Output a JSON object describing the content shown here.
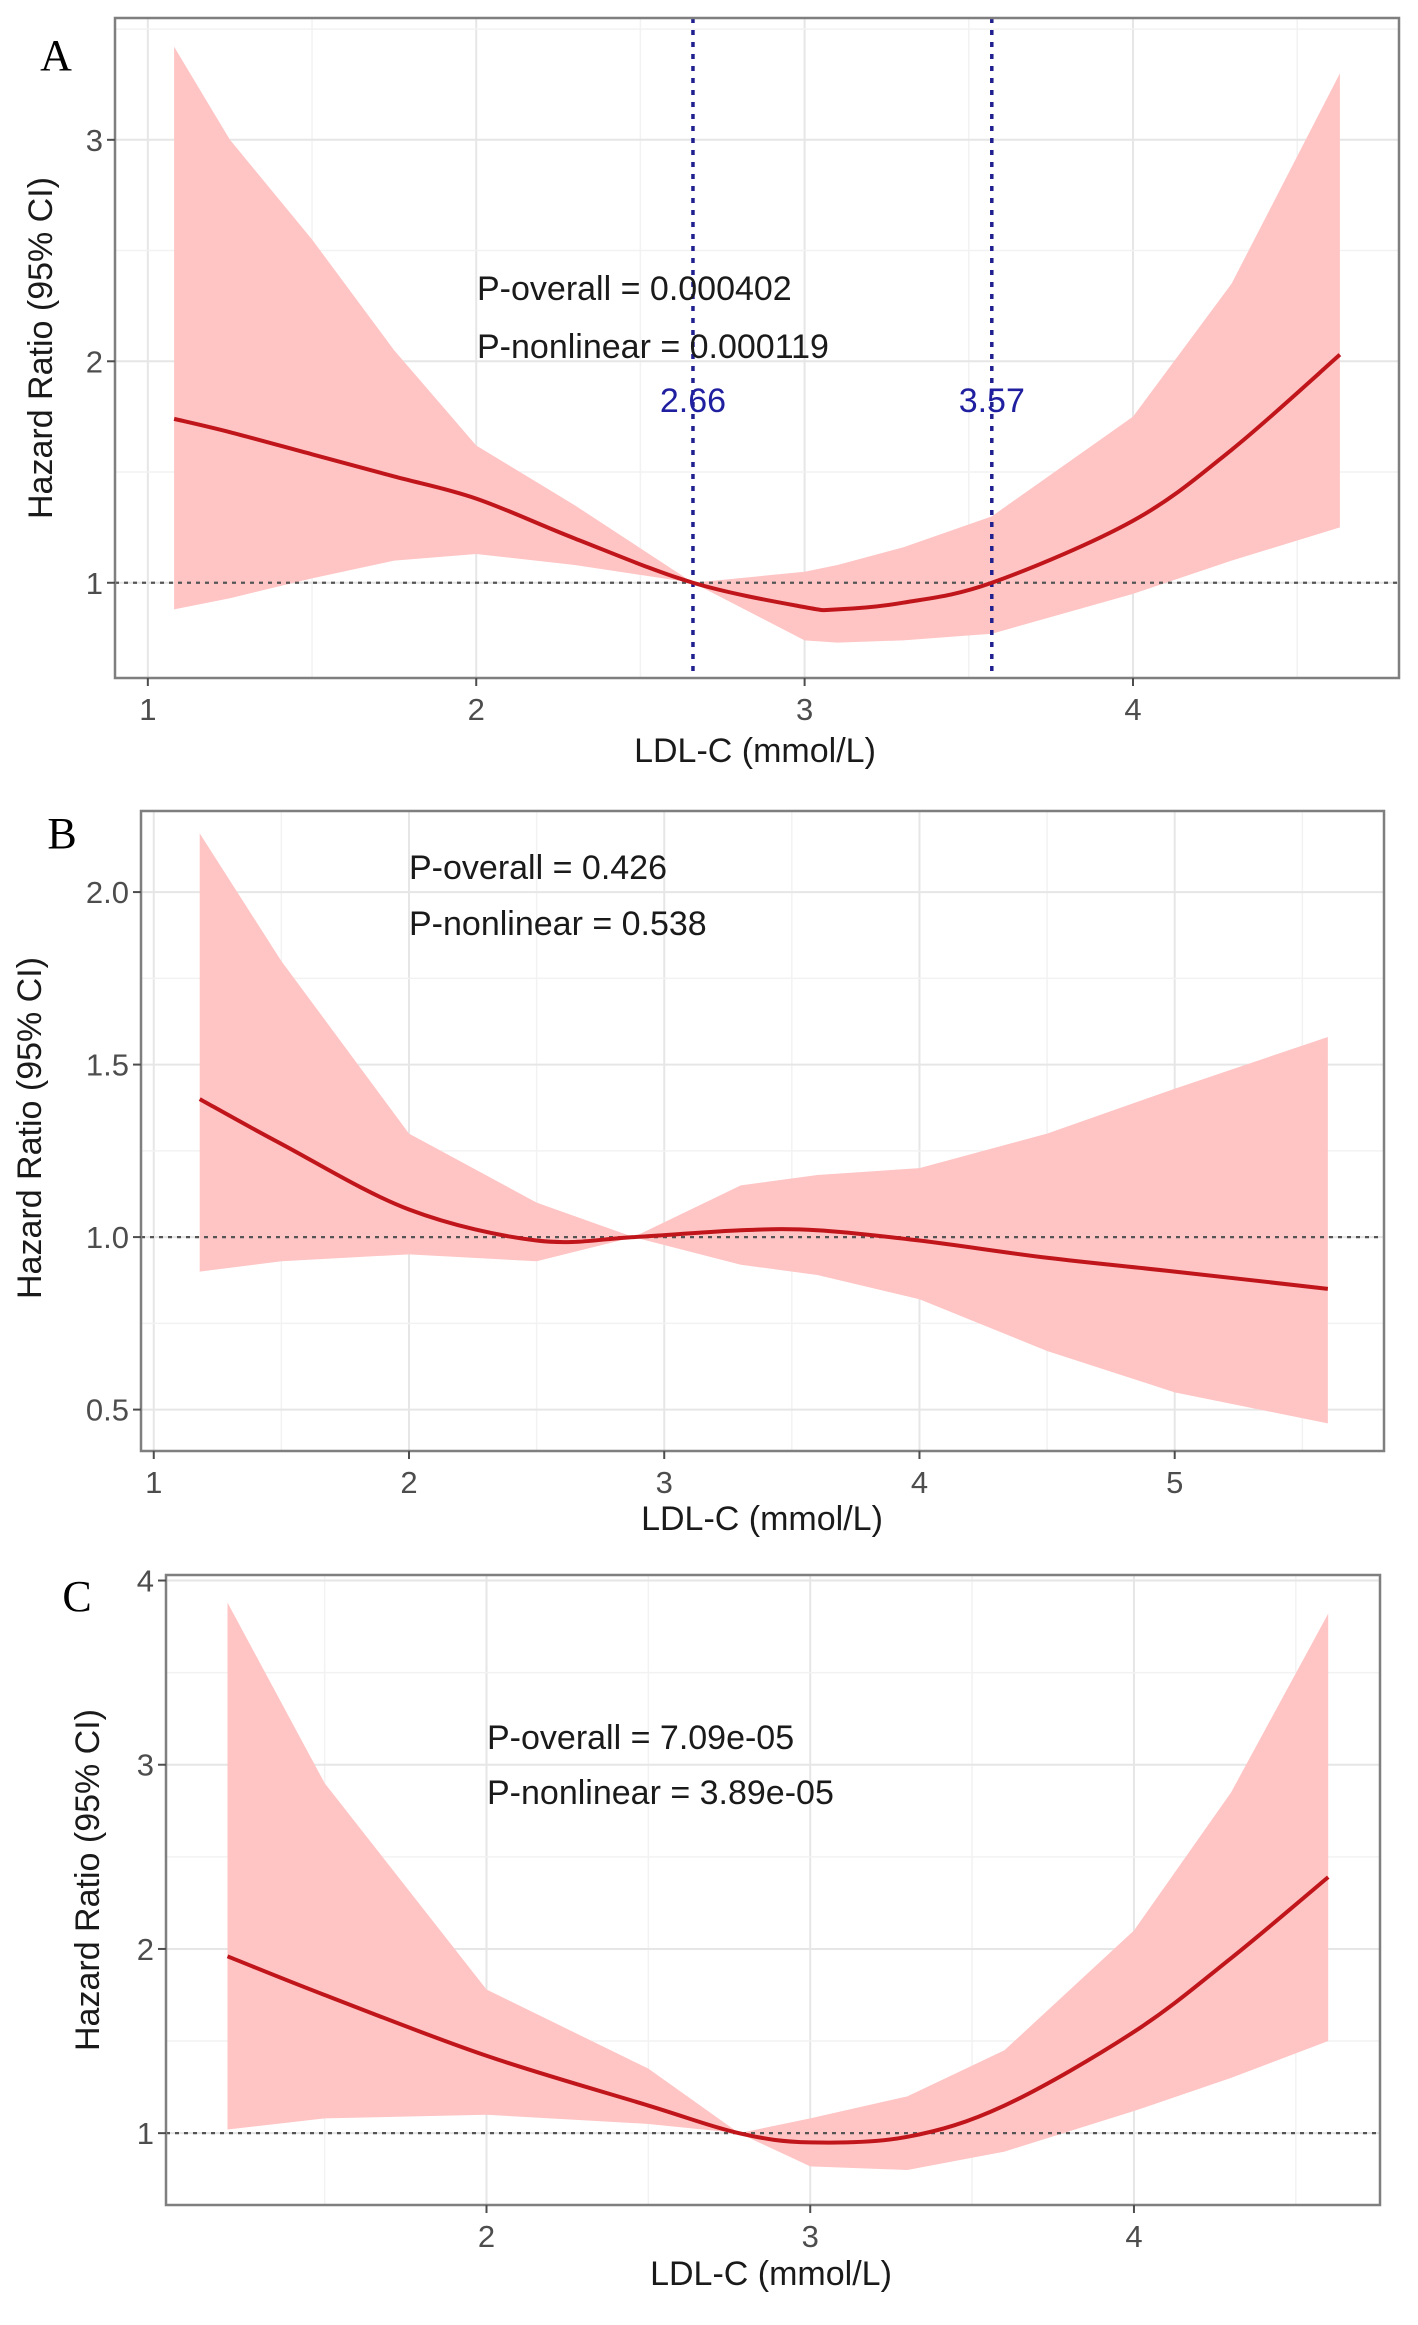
{
  "chart_data": [
    {
      "panel": "A",
      "type": "line",
      "xlabel": "LDL-C (mmol/L)",
      "ylabel": "Hazard Ratio (95% CI)",
      "xlim": [
        0.9,
        4.81
      ],
      "ylim": [
        0.57,
        3.55
      ],
      "xticks": [
        1,
        2,
        3,
        4
      ],
      "yticks": [
        1,
        2,
        3
      ],
      "grid": true,
      "reference_line": 1,
      "annotations": [
        "P-overall = 0.000402",
        "P-nonlinear = 0.000119"
      ],
      "cutpoints": [
        {
          "x": 2.66,
          "label": "2.66"
        },
        {
          "x": 3.57,
          "label": "3.57"
        }
      ],
      "x": [
        1.08,
        1.25,
        1.5,
        1.75,
        2.0,
        2.3,
        2.66,
        3.0,
        3.1,
        3.3,
        3.57,
        4.0,
        4.3,
        4.63
      ],
      "hr": [
        1.74,
        1.68,
        1.58,
        1.48,
        1.38,
        1.2,
        1.0,
        0.89,
        0.88,
        0.91,
        1.0,
        1.28,
        1.6,
        2.03
      ],
      "lower": [
        0.88,
        0.93,
        1.02,
        1.1,
        1.13,
        1.08,
        1.0,
        0.74,
        0.73,
        0.74,
        0.77,
        0.95,
        1.1,
        1.25
      ],
      "upper": [
        3.42,
        3.0,
        2.55,
        2.05,
        1.62,
        1.35,
        1.0,
        1.05,
        1.08,
        1.16,
        1.3,
        1.75,
        2.35,
        3.3
      ]
    },
    {
      "panel": "B",
      "type": "line",
      "xlabel": "LDL-C (mmol/L)",
      "ylabel": "Hazard Ratio (95% CI)",
      "xlim": [
        0.95,
        5.82
      ],
      "ylim": [
        0.38,
        2.235
      ],
      "xticks": [
        1,
        2,
        3,
        4,
        5
      ],
      "yticks": [
        0.5,
        1.0,
        1.5,
        2.0
      ],
      "ytick_labels": [
        "0.5",
        "1.0",
        "1.5",
        "2.0"
      ],
      "grid": true,
      "reference_line": 1,
      "annotations": [
        "P-overall = 0.426",
        "P-nonlinear = 0.538"
      ],
      "x": [
        1.18,
        1.5,
        2.0,
        2.5,
        2.88,
        3.3,
        3.6,
        4.0,
        4.5,
        5.0,
        5.6
      ],
      "hr": [
        1.4,
        1.27,
        1.08,
        0.99,
        1.0,
        1.02,
        1.02,
        0.99,
        0.94,
        0.9,
        0.85
      ],
      "lower": [
        0.9,
        0.93,
        0.95,
        0.93,
        1.0,
        0.92,
        0.89,
        0.82,
        0.67,
        0.55,
        0.46
      ],
      "upper": [
        2.17,
        1.8,
        1.3,
        1.1,
        1.0,
        1.15,
        1.18,
        1.2,
        1.3,
        1.43,
        1.58
      ]
    },
    {
      "panel": "C",
      "type": "line",
      "xlabel": "LDL-C (mmol/L)",
      "ylabel": "Hazard Ratio (95% CI)",
      "xlim": [
        1.01,
        4.76
      ],
      "ylim": [
        0.61,
        4.03
      ],
      "xticks": [
        2,
        3,
        4
      ],
      "yticks": [
        1,
        2,
        3,
        4
      ],
      "grid": true,
      "reference_line": 1,
      "annotations": [
        "P-overall = 7.09e-05",
        "P-nonlinear = 3.89e-05"
      ],
      "x": [
        1.2,
        1.5,
        2.0,
        2.5,
        2.78,
        3.0,
        3.3,
        3.6,
        4.0,
        4.3,
        4.6
      ],
      "hr": [
        1.96,
        1.75,
        1.42,
        1.15,
        1.0,
        0.95,
        0.98,
        1.15,
        1.55,
        1.95,
        2.39
      ],
      "lower": [
        1.02,
        1.08,
        1.1,
        1.05,
        1.0,
        0.82,
        0.8,
        0.9,
        1.12,
        1.3,
        1.5
      ],
      "upper": [
        3.88,
        2.9,
        1.78,
        1.35,
        1.0,
        1.08,
        1.2,
        1.45,
        2.1,
        2.85,
        3.82
      ]
    }
  ],
  "colors": {
    "line": "#c0161b",
    "band": "#ffc4c4",
    "cutline": "#1f1f8f",
    "cutlabel": "#1f1fa0"
  }
}
